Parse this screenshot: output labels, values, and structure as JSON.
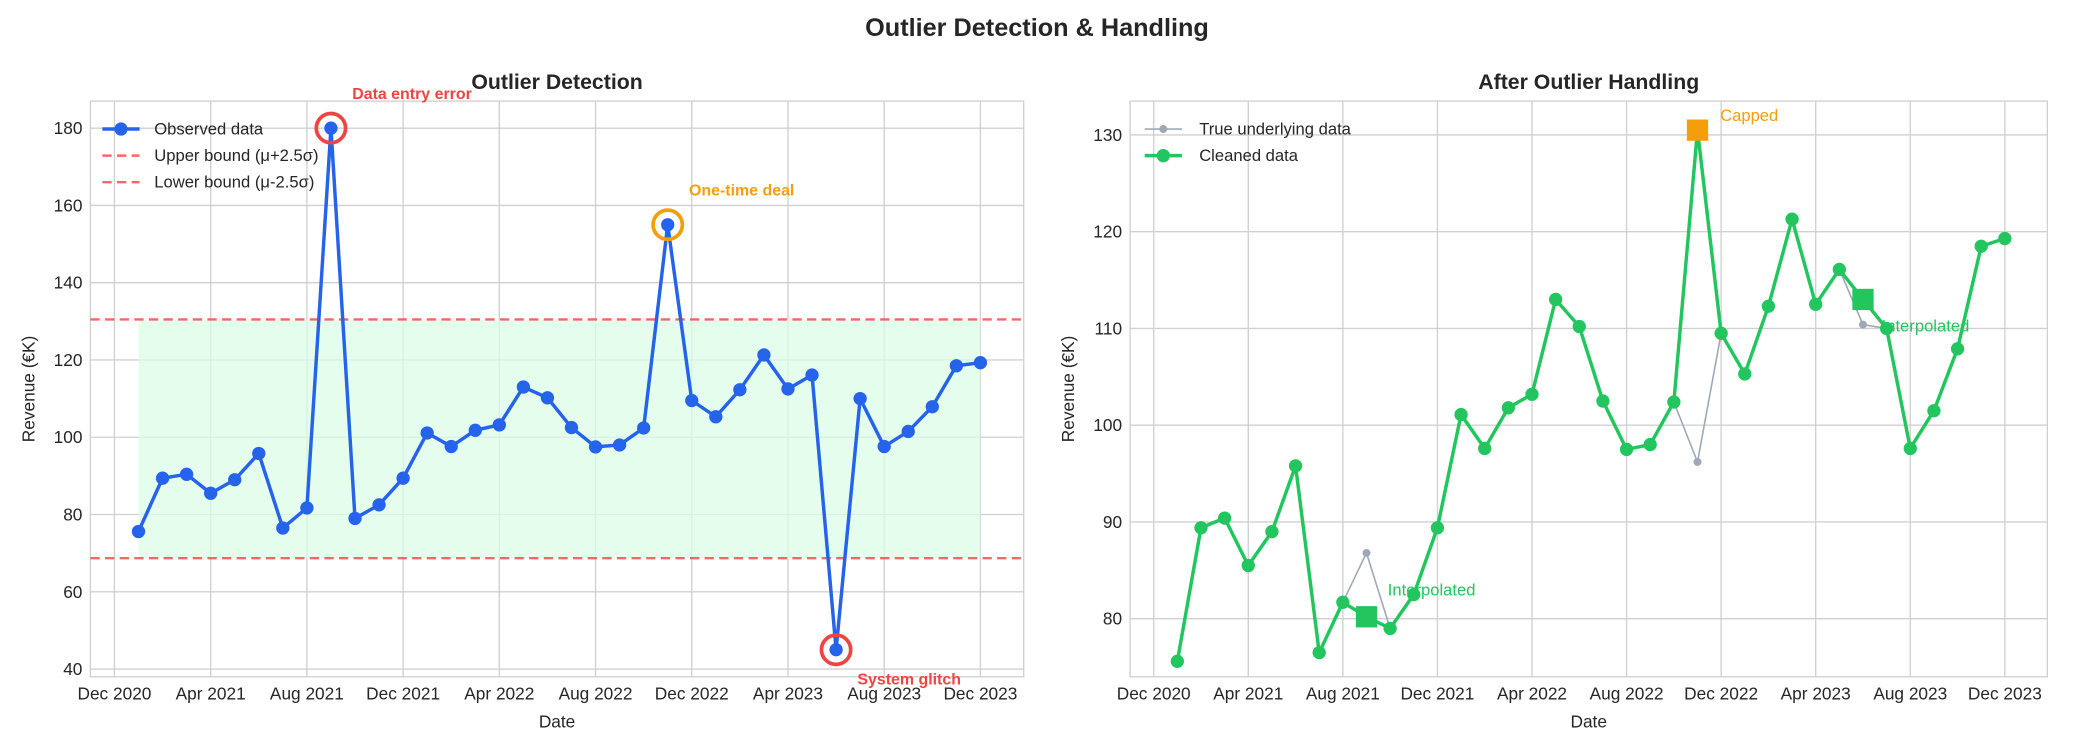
{
  "suptitle": "Outlier Detection & Handling",
  "colors": {
    "observed": "#2563eb",
    "bound": "#ef4444",
    "band": "#dcfce7",
    "cleaned": "#22c55e",
    "true": "#a0a8b8",
    "capped": "#f59e0b",
    "error": "#ef4444",
    "deal": "#f59e0b"
  },
  "chart_data": [
    {
      "type": "line",
      "title": "Outlier Detection",
      "xlabel": "Date",
      "ylabel": "Revenue (€K)",
      "ylim": [
        38,
        187
      ],
      "yticks": [
        40,
        60,
        80,
        100,
        120,
        140,
        160,
        180
      ],
      "xtick_labels": [
        "Dec 2020",
        "Apr 2021",
        "Aug 2021",
        "Dec 2021",
        "Apr 2022",
        "Aug 2022",
        "Dec 2022",
        "Apr 2023",
        "Aug 2023",
        "Dec 2023"
      ],
      "x_start": "Jan 2021",
      "x_end": "Dec 2023",
      "grid": true,
      "legend_position": "top-left",
      "legend": [
        "Observed data",
        "Upper bound (μ+2.5σ)",
        "Lower bound (μ-2.5σ)"
      ],
      "upper_bound": 130.5,
      "lower_bound": 68.7,
      "series": [
        {
          "name": "Observed data",
          "values": [
            75.6,
            89.4,
            90.4,
            85.5,
            89.0,
            95.8,
            76.5,
            81.7,
            180.0,
            79.0,
            82.5,
            89.4,
            101.1,
            97.6,
            101.8,
            103.2,
            113.0,
            110.2,
            102.5,
            97.5,
            98.0,
            102.4,
            155.0,
            109.5,
            105.3,
            112.3,
            121.3,
            112.5,
            116.1,
            45.0,
            110.0,
            97.6,
            101.5,
            107.9,
            118.5,
            119.3
          ]
        }
      ],
      "annotations": [
        {
          "text": "Data entry error",
          "index": 8,
          "color": "error"
        },
        {
          "text": "One-time deal",
          "index": 22,
          "color": "deal"
        },
        {
          "text": "System glitch",
          "index": 29,
          "color": "error"
        }
      ]
    },
    {
      "type": "line",
      "title": "After Outlier Handling",
      "xlabel": "Date",
      "ylabel": "Revenue (€K)",
      "ylim": [
        74,
        133.5
      ],
      "yticks": [
        80,
        90,
        100,
        110,
        120,
        130
      ],
      "xtick_labels": [
        "Dec 2020",
        "Apr 2021",
        "Aug 2021",
        "Dec 2021",
        "Apr 2022",
        "Aug 2022",
        "Dec 2022",
        "Apr 2023",
        "Aug 2023",
        "Dec 2023"
      ],
      "grid": true,
      "legend_position": "top-left",
      "legend": [
        "True underlying data",
        "Cleaned data"
      ],
      "series": [
        {
          "name": "True underlying data",
          "values": [
            75.6,
            89.4,
            90.4,
            85.5,
            89.0,
            95.8,
            76.5,
            81.7,
            86.8,
            79.0,
            82.5,
            89.4,
            101.1,
            97.6,
            101.8,
            103.2,
            113.0,
            110.2,
            102.5,
            97.5,
            98.0,
            102.4,
            96.2,
            109.5,
            105.3,
            112.3,
            121.3,
            112.5,
            116.1,
            110.4,
            110.0,
            97.6,
            101.5,
            107.9,
            118.5,
            119.3
          ]
        },
        {
          "name": "Cleaned data",
          "values": [
            75.6,
            89.4,
            90.4,
            85.5,
            89.0,
            95.8,
            76.5,
            81.7,
            80.2,
            79.0,
            82.5,
            89.4,
            101.1,
            97.6,
            101.8,
            103.2,
            113.0,
            110.2,
            102.5,
            97.5,
            98.0,
            102.4,
            130.5,
            109.5,
            105.3,
            112.3,
            121.3,
            112.5,
            116.1,
            113.0,
            110.0,
            97.6,
            101.5,
            107.9,
            118.5,
            119.3
          ]
        }
      ],
      "annotations": [
        {
          "text": "Interpolated",
          "index": 8,
          "color": "cleaned"
        },
        {
          "text": "Capped",
          "index": 22,
          "color": "capped"
        },
        {
          "text": "Interpolated",
          "index": 29,
          "color": "cleaned"
        }
      ]
    }
  ]
}
